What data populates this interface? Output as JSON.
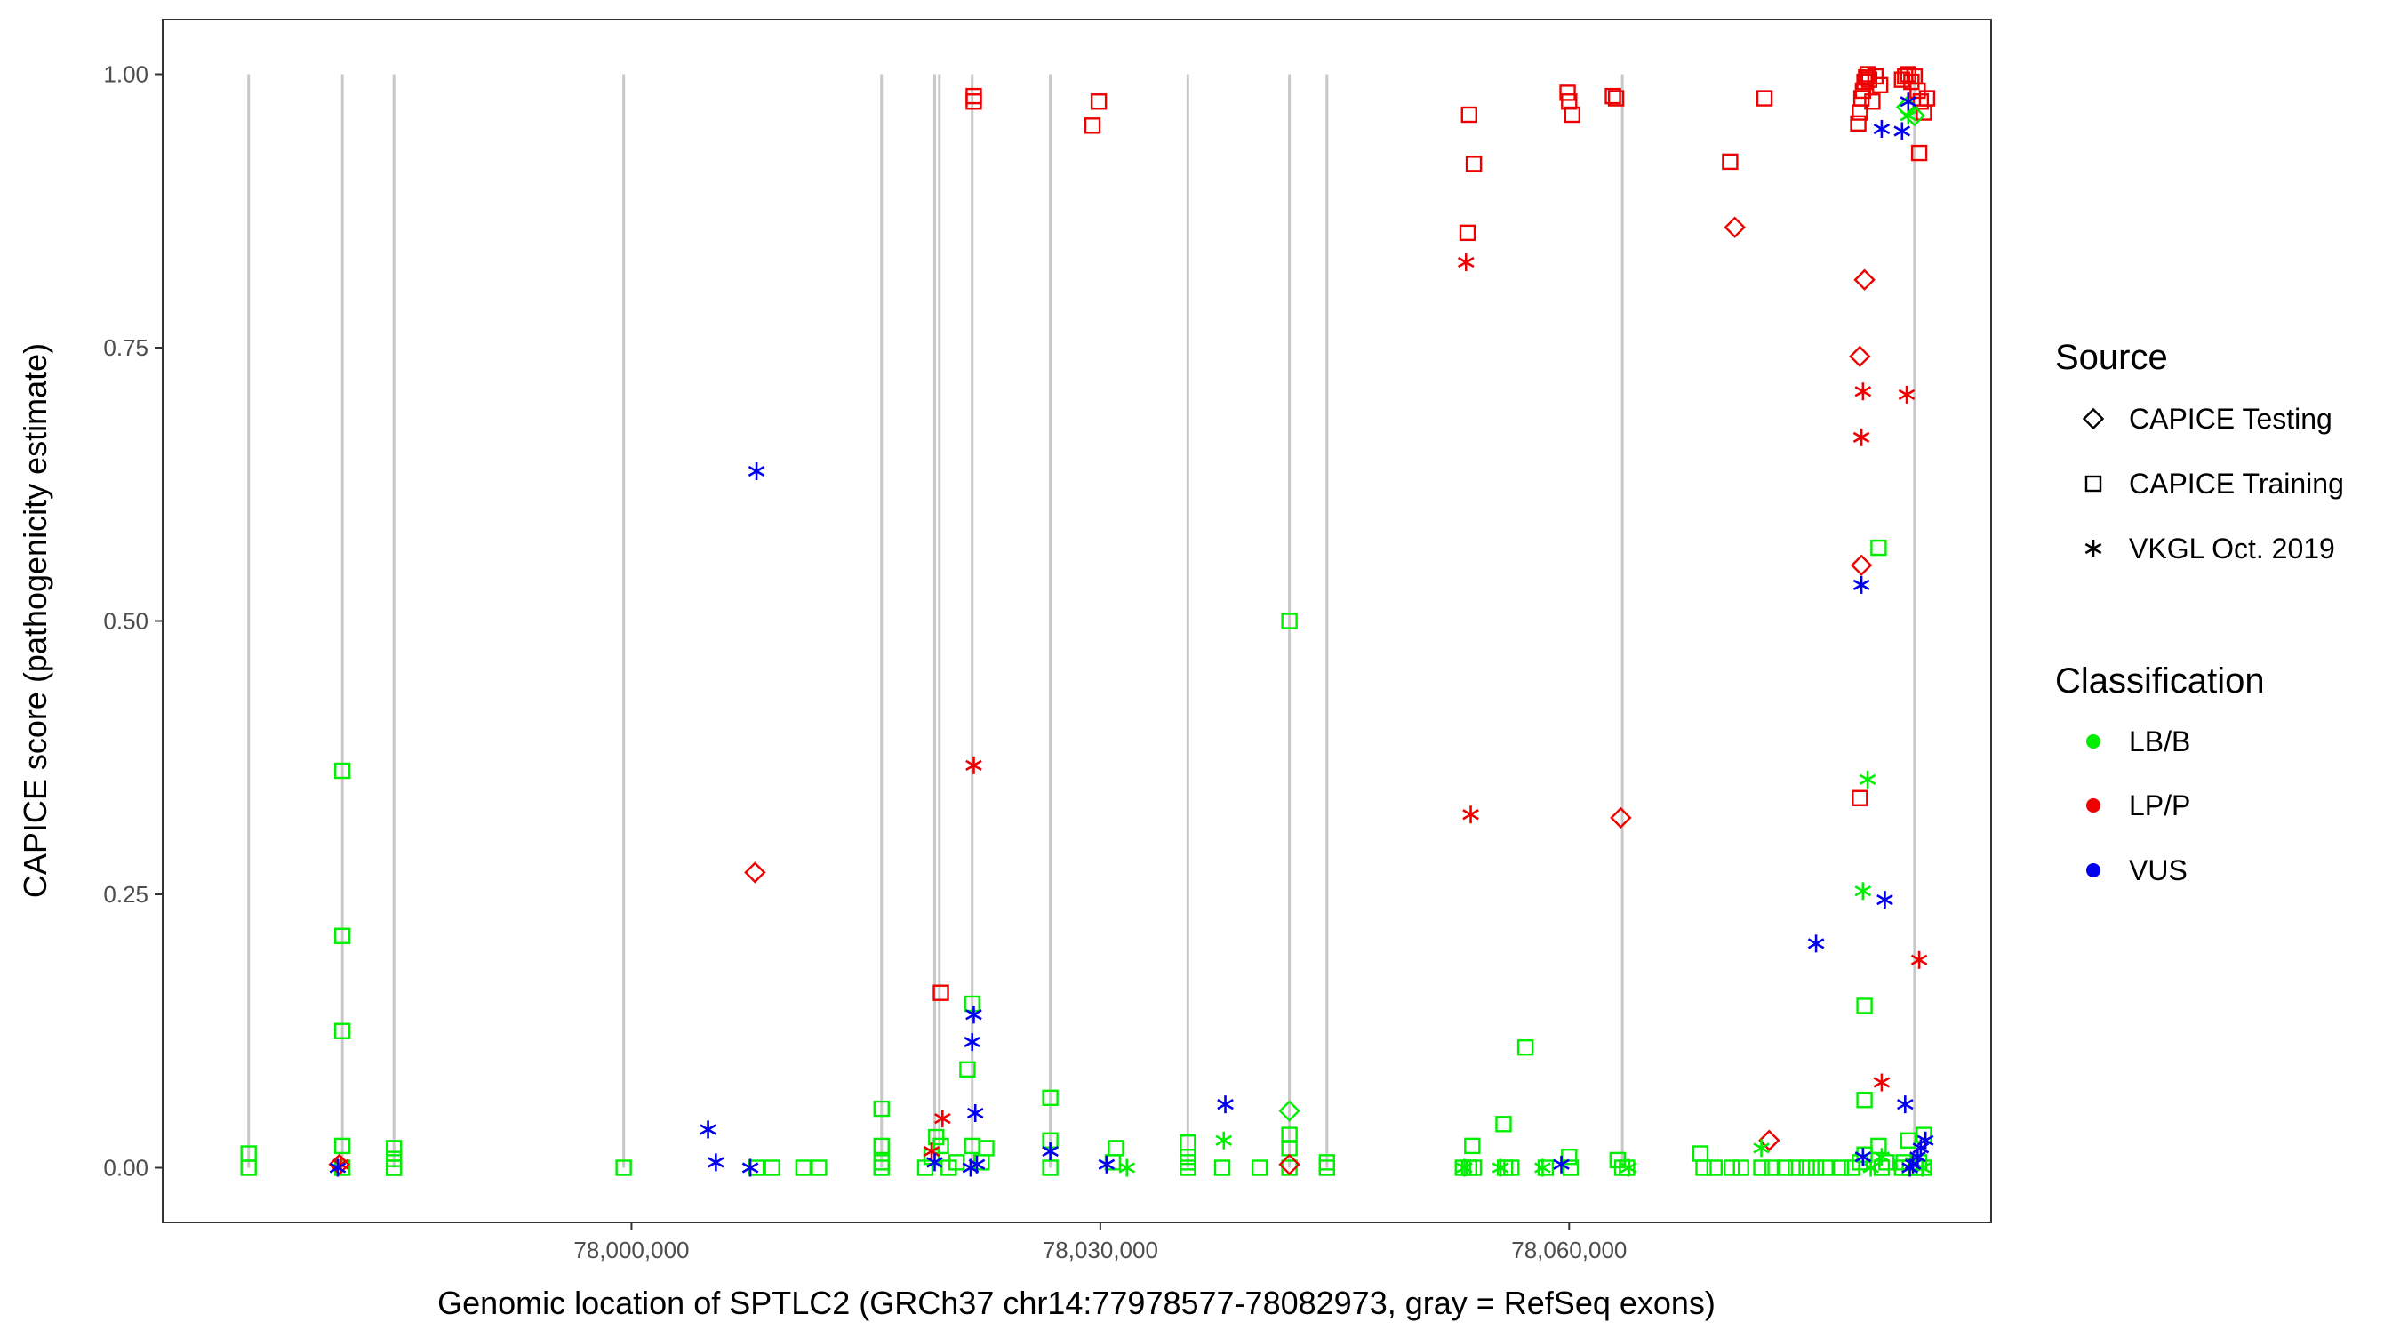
{
  "chart_data": {
    "type": "scatter",
    "title": "",
    "xlabel": "Genomic location of SPTLC2 (GRCh37 chr14:77978577-78082973, gray = RefSeq exons)",
    "ylabel": "CAPICE score (pathogenicity estimate)",
    "xlim": [
      77970000,
      78087000
    ],
    "ylim": [
      -0.05,
      1.05
    ],
    "x_ticks": [
      78000000,
      78030000,
      78060000
    ],
    "x_tick_labels": [
      "78,000,000",
      "78,030,000",
      "78,060,000"
    ],
    "y_ticks": [
      0.0,
      0.25,
      0.5,
      0.75,
      1.0
    ],
    "y_tick_labels": [
      "0.00",
      "0.25",
      "0.50",
      "0.75",
      "1.00"
    ],
    "grid": false,
    "exon_positions": [
      77975500,
      77981500,
      77984800,
      77999500,
      78016000,
      78019400,
      78019700,
      78021800,
      78026800,
      78035600,
      78042100,
      78044500,
      78063400,
      78082100
    ],
    "legend": {
      "placement": "right",
      "source_title": "Source",
      "source_items": [
        {
          "label": "CAPICE Testing",
          "shape": "diamond"
        },
        {
          "label": "CAPICE Training",
          "shape": "square"
        },
        {
          "label": "VKGL Oct. 2019",
          "shape": "asterisk"
        }
      ],
      "class_title": "Classification",
      "class_items": [
        {
          "label": "LB/B",
          "color": "#00ee00"
        },
        {
          "label": "LP/P",
          "color": "#ee0000"
        },
        {
          "label": "VUS",
          "color": "#0000ee"
        }
      ]
    },
    "series": [
      {
        "name": "CAPICE Training / LB/B",
        "shape": "square",
        "color": "#00ee00",
        "points": [
          [
            77975500,
            0.013
          ],
          [
            77975500,
            0.0
          ],
          [
            77981500,
            0.363
          ],
          [
            77981500,
            0.212
          ],
          [
            77981500,
            0.125
          ],
          [
            77981500,
            0.02
          ],
          [
            77981500,
            0.0
          ],
          [
            77984800,
            0.018
          ],
          [
            77984800,
            0.008
          ],
          [
            77984800,
            0.0
          ],
          [
            77984800,
            0.0
          ],
          [
            77999500,
            0.0
          ],
          [
            78008000,
            0.0
          ],
          [
            78009000,
            0.0
          ],
          [
            78011000,
            0.0
          ],
          [
            78012000,
            0.0
          ],
          [
            78016000,
            0.054
          ],
          [
            78016000,
            0.02
          ],
          [
            78016000,
            0.005
          ],
          [
            78016000,
            0.0
          ],
          [
            78018800,
            0.0
          ],
          [
            78019200,
            0.01
          ],
          [
            78019500,
            0.028
          ],
          [
            78019800,
            0.02
          ],
          [
            78020300,
            0.0
          ],
          [
            78020800,
            0.005
          ],
          [
            78021500,
            0.09
          ],
          [
            78021800,
            0.02
          ],
          [
            78021800,
            0.15
          ],
          [
            78022400,
            0.005
          ],
          [
            78022700,
            0.018
          ],
          [
            78026800,
            0.064
          ],
          [
            78026800,
            0.025
          ],
          [
            78026800,
            0.0
          ],
          [
            78030800,
            0.005
          ],
          [
            78031000,
            0.018
          ],
          [
            78035600,
            0.023
          ],
          [
            78035600,
            0.01
          ],
          [
            78035600,
            0.0
          ],
          [
            78035600,
            0.005
          ],
          [
            78037800,
            0.0
          ],
          [
            78040200,
            0.0
          ],
          [
            78042100,
            0.5
          ],
          [
            78042100,
            0.03
          ],
          [
            78042100,
            0.018
          ],
          [
            78042100,
            0.0
          ],
          [
            78044500,
            0.005
          ],
          [
            78044500,
            0.0
          ],
          [
            78053200,
            0.0
          ],
          [
            78053600,
            0.0
          ],
          [
            78053800,
            0.02
          ],
          [
            78053900,
            0.0
          ],
          [
            78055800,
            0.04
          ],
          [
            78055900,
            0.0
          ],
          [
            78056300,
            0.0
          ],
          [
            78057200,
            0.11
          ],
          [
            78058500,
            0.0
          ],
          [
            78060000,
            0.01
          ],
          [
            78060100,
            0.0
          ],
          [
            78063100,
            0.007
          ],
          [
            78063400,
            0.0
          ],
          [
            78063700,
            0.0
          ],
          [
            78068400,
            0.013
          ],
          [
            78068600,
            0.0
          ],
          [
            78069300,
            0.0
          ],
          [
            78070400,
            0.0
          ],
          [
            78071000,
            0.0
          ],
          [
            78072300,
            0.0
          ],
          [
            78073000,
            0.0
          ],
          [
            78073800,
            0.0
          ],
          [
            78074500,
            0.0
          ],
          [
            78075200,
            0.0
          ],
          [
            78075800,
            0.0
          ],
          [
            78076400,
            0.0
          ],
          [
            78077400,
            0.0
          ],
          [
            78078100,
            0.0
          ],
          [
            78078600,
            0.005
          ],
          [
            78078900,
            0.062
          ],
          [
            78078900,
            0.148
          ],
          [
            78078900,
            0.012
          ],
          [
            78079800,
            0.567
          ],
          [
            78079800,
            0.02
          ],
          [
            78080000,
            0.0
          ],
          [
            78080300,
            0.005
          ],
          [
            78081300,
            0.0
          ],
          [
            78081400,
            0.005
          ],
          [
            78081700,
            0.025
          ],
          [
            78081800,
            0.0
          ],
          [
            78082200,
            0.0
          ],
          [
            78082400,
            0.005
          ],
          [
            78082700,
            0.03
          ],
          [
            78082700,
            0.0
          ]
        ]
      },
      {
        "name": "CAPICE Training / LP/P",
        "shape": "square",
        "color": "#ee0000",
        "points": [
          [
            78021900,
            0.98
          ],
          [
            78021900,
            0.975
          ],
          [
            78019800,
            0.16
          ],
          [
            78029500,
            0.953
          ],
          [
            78029900,
            0.975
          ],
          [
            78053600,
            0.963
          ],
          [
            78053900,
            0.918
          ],
          [
            78053500,
            0.855
          ],
          [
            78059900,
            0.983
          ],
          [
            78060000,
            0.975
          ],
          [
            78060200,
            0.963
          ],
          [
            78062800,
            0.98
          ],
          [
            78063000,
            0.978
          ],
          [
            78070300,
            0.92
          ],
          [
            78072500,
            0.978
          ],
          [
            78078500,
            0.955
          ],
          [
            78078600,
            0.965
          ],
          [
            78078700,
            0.978
          ],
          [
            78078800,
            0.985
          ],
          [
            78078900,
            0.993
          ],
          [
            78079000,
            0.997
          ],
          [
            78079100,
            1.0
          ],
          [
            78079200,
            0.995
          ],
          [
            78079400,
            0.975
          ],
          [
            78079600,
            0.998
          ],
          [
            78079900,
            0.99
          ],
          [
            78078600,
            0.338
          ],
          [
            78081300,
            0.995
          ],
          [
            78081500,
            0.998
          ],
          [
            78081700,
            1.0
          ],
          [
            78081900,
            0.993
          ],
          [
            78082100,
            0.998
          ],
          [
            78082300,
            0.985
          ],
          [
            78082500,
            0.975
          ],
          [
            78082700,
            0.965
          ],
          [
            78082900,
            0.978
          ],
          [
            78082400,
            0.928
          ]
        ]
      },
      {
        "name": "CAPICE Testing / LB/B",
        "shape": "diamond",
        "color": "#00ee00",
        "points": [
          [
            78042100,
            0.052
          ],
          [
            78081600,
            0.97
          ],
          [
            78082100,
            0.962
          ]
        ]
      },
      {
        "name": "CAPICE Testing / LP/P",
        "shape": "diamond",
        "color": "#ee0000",
        "points": [
          [
            78007900,
            0.27
          ],
          [
            78070600,
            0.86
          ],
          [
            78063300,
            0.32
          ],
          [
            78072800,
            0.025
          ],
          [
            78042100,
            0.003
          ],
          [
            78078900,
            0.812
          ],
          [
            78078600,
            0.742
          ],
          [
            78078700,
            0.551
          ],
          [
            77981300,
            0.003
          ]
        ]
      },
      {
        "name": "VKGL Oct. 2019 / LB/B",
        "shape": "asterisk",
        "color": "#00ee00",
        "points": [
          [
            78031700,
            0.0
          ],
          [
            78037900,
            0.025
          ],
          [
            78053300,
            0.0
          ],
          [
            78055600,
            0.0
          ],
          [
            78058300,
            0.0
          ],
          [
            78063800,
            0.0
          ],
          [
            78072300,
            0.018
          ],
          [
            78078800,
            0.253
          ],
          [
            78079100,
            0.355
          ],
          [
            78079300,
            0.0
          ],
          [
            78080000,
            0.01
          ],
          [
            78081700,
            0.962
          ],
          [
            78082000,
            0.005
          ],
          [
            78082600,
            0.0
          ]
        ]
      },
      {
        "name": "VKGL Oct. 2019 / LP/P",
        "shape": "asterisk",
        "color": "#ee0000",
        "points": [
          [
            77981400,
            0.003
          ],
          [
            78019200,
            0.015
          ],
          [
            78019900,
            0.045
          ],
          [
            78021900,
            0.368
          ],
          [
            78053400,
            0.828
          ],
          [
            78053700,
            0.323
          ],
          [
            78078800,
            0.71
          ],
          [
            78078700,
            0.668
          ],
          [
            78080000,
            0.078
          ],
          [
            78081600,
            0.707
          ],
          [
            78082400,
            0.19
          ]
        ]
      },
      {
        "name": "VKGL Oct. 2019 / VUS",
        "shape": "asterisk",
        "color": "#0000ee",
        "points": [
          [
            77981200,
            0.0
          ],
          [
            78008000,
            0.637
          ],
          [
            78004900,
            0.035
          ],
          [
            78005400,
            0.005
          ],
          [
            78007600,
            0.0
          ],
          [
            78019400,
            0.005
          ],
          [
            78021700,
            0.0
          ],
          [
            78021900,
            0.14
          ],
          [
            78021800,
            0.115
          ],
          [
            78022000,
            0.05
          ],
          [
            78022100,
            0.003
          ],
          [
            78026800,
            0.015
          ],
          [
            78030400,
            0.003
          ],
          [
            78038000,
            0.058
          ],
          [
            78059500,
            0.003
          ],
          [
            78075800,
            0.205
          ],
          [
            78078700,
            0.533
          ],
          [
            78078800,
            0.01
          ],
          [
            78080200,
            0.245
          ],
          [
            78081500,
            0.058
          ],
          [
            78080000,
            0.95
          ],
          [
            78081300,
            0.948
          ],
          [
            78081700,
            0.975
          ],
          [
            78081800,
            0.0
          ],
          [
            78082000,
            0.003
          ],
          [
            78082300,
            0.01
          ],
          [
            78082500,
            0.018
          ],
          [
            78082800,
            0.025
          ]
        ]
      }
    ]
  }
}
